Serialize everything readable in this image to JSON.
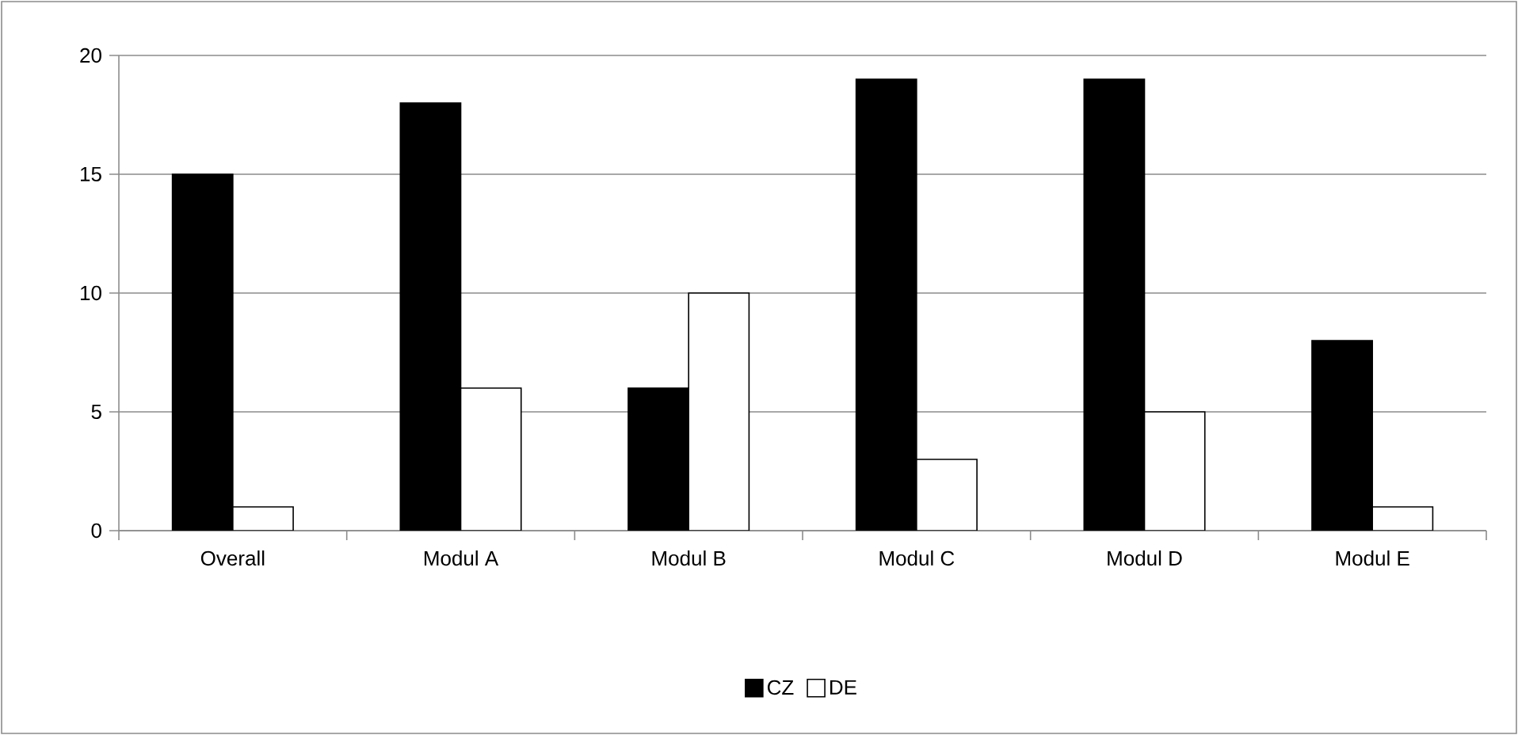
{
  "chart_data": {
    "type": "bar",
    "categories": [
      "Overall",
      "Modul A",
      "Modul B",
      "Modul C",
      "Modul D",
      "Modul E"
    ],
    "series": [
      {
        "name": "CZ",
        "color": "#000000",
        "values": [
          15,
          18,
          6,
          19,
          19,
          8
        ]
      },
      {
        "name": "DE",
        "color": "#ffffff",
        "values": [
          1,
          6,
          10,
          3,
          5,
          1
        ]
      }
    ],
    "ylim": [
      0,
      20
    ],
    "yticks": [
      0,
      5,
      10,
      15,
      20
    ],
    "grid": "y",
    "legend": "bottom"
  }
}
